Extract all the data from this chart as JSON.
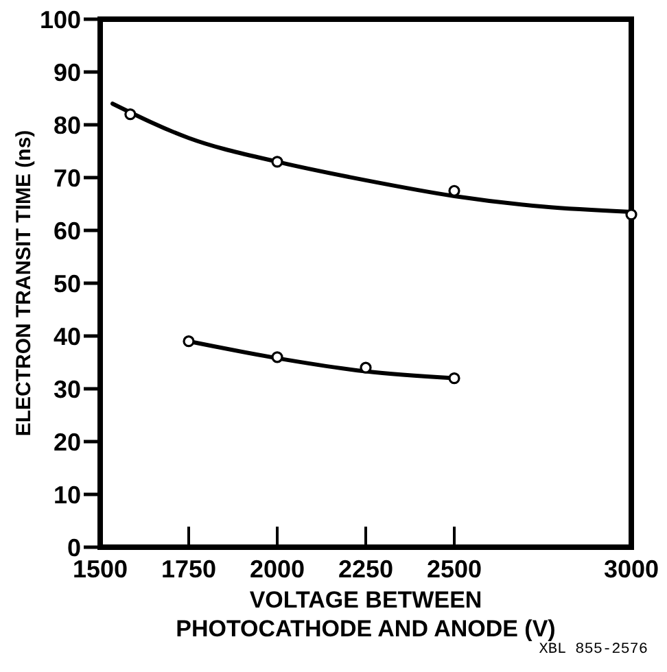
{
  "chart_data": {
    "type": "scatter",
    "xlabel": "VOLTAGE BETWEEN\nPHOTOCATHODE AND ANODE (V)",
    "ylabel": "ELECTRON TRANSIT TIME (ns)",
    "xlim": [
      1500,
      3000
    ],
    "xticks": [
      1500,
      1750,
      2000,
      2250,
      2500,
      3000
    ],
    "ylim": [
      0,
      100
    ],
    "yticks": [
      0,
      10,
      20,
      30,
      40,
      50,
      60,
      70,
      80,
      90,
      100
    ],
    "grid": false,
    "marker": "circle",
    "line_style": "solid",
    "annotations": [
      "XBL 855-2576"
    ],
    "series": [
      {
        "type": "line",
        "color": "#000000",
        "marker": "none",
        "x": [
          1535,
          1750,
          2000,
          2250,
          2500,
          2750,
          3000
        ],
        "values": [
          84,
          77.5,
          73,
          69.5,
          66.5,
          64.5,
          63.5
        ]
      },
      {
        "color": "#000000",
        "x": [
          1585,
          2000,
          2500,
          3000
        ],
        "values": [
          82,
          73,
          67.5,
          63
        ]
      },
      {
        "type": "line",
        "color": "#000000",
        "marker": "none",
        "x": [
          1750,
          2000,
          2250,
          2500
        ],
        "values": [
          39,
          35.8,
          33.3,
          32
        ]
      },
      {
        "color": "#000000",
        "x": [
          1750,
          2000,
          2250,
          2500
        ],
        "values": [
          39,
          36,
          34,
          32
        ]
      }
    ]
  }
}
